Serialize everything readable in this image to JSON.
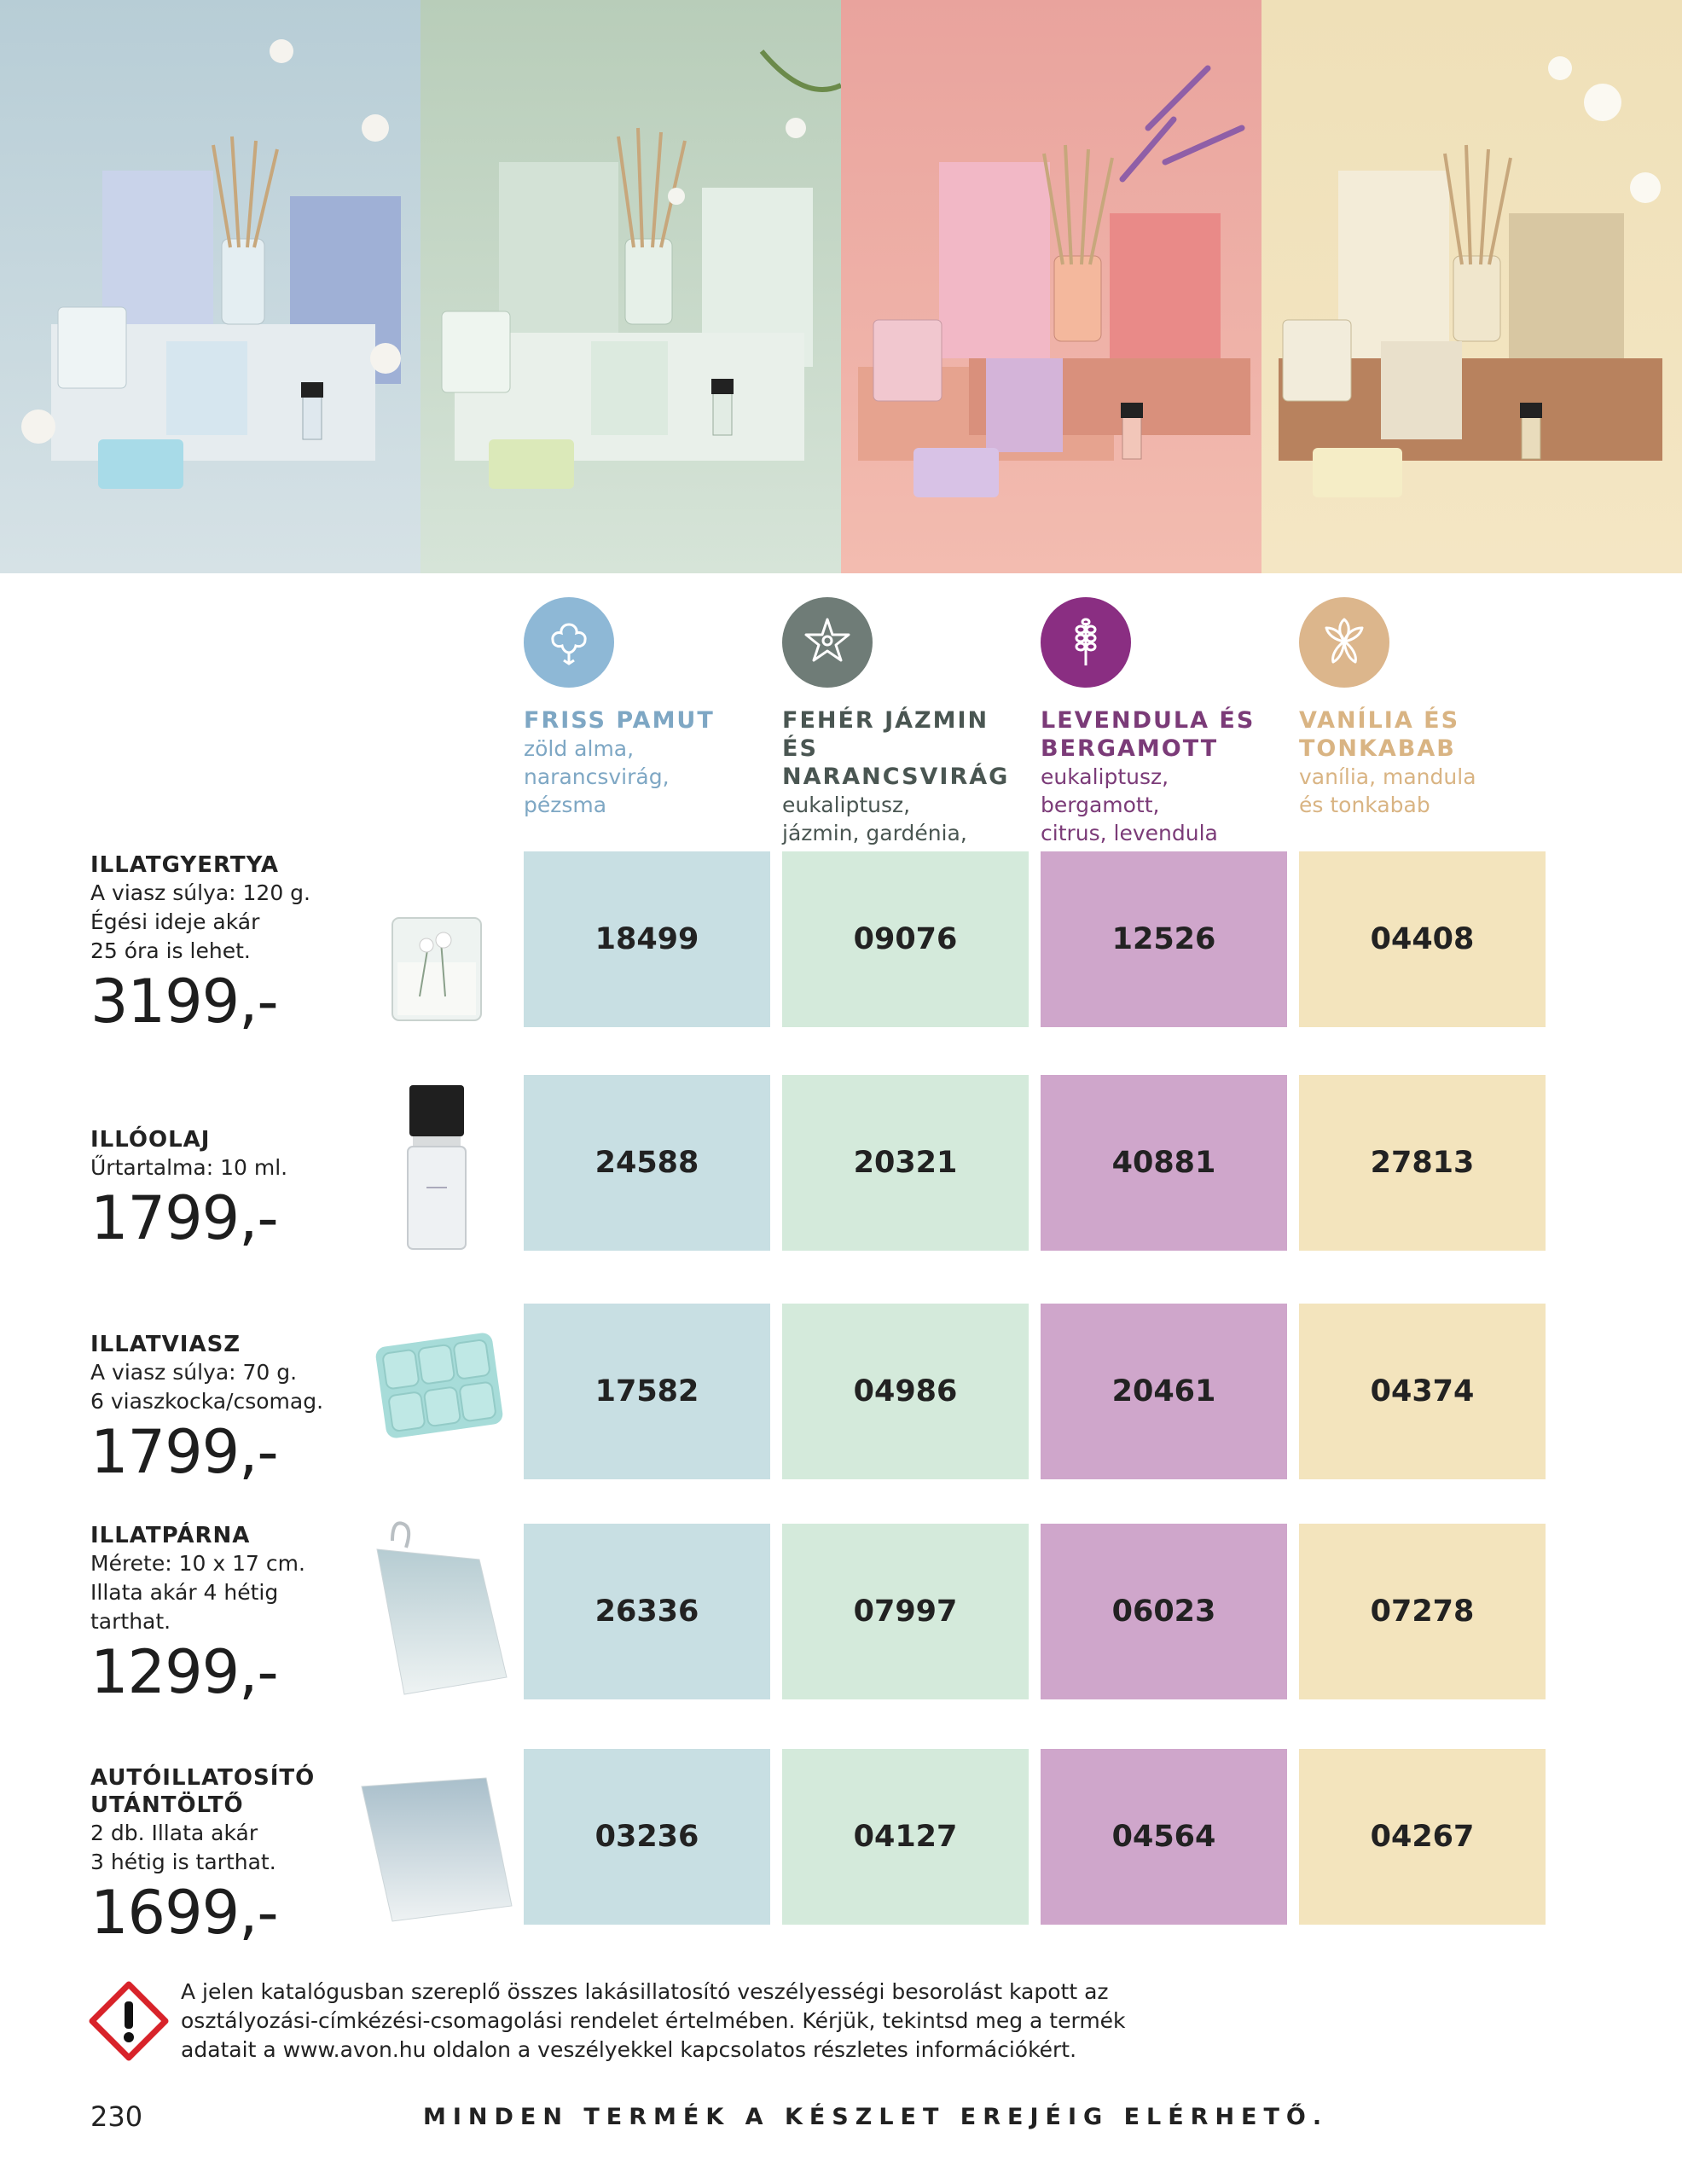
{
  "hero_panels": [
    {
      "name": "friss-pamut",
      "bg": "#bfd3da"
    },
    {
      "name": "feher-jazmin",
      "bg": "#c4d6c6"
    },
    {
      "name": "levendula",
      "bg": "#eba8a1"
    },
    {
      "name": "vanilia",
      "bg": "#eedcb3"
    }
  ],
  "scents": [
    {
      "name": "FRISS PAMUT",
      "notes": "zöld alma,\nnarancsvirág,\npézsma",
      "color": "#7ea7c4",
      "icon_bg": "#8eb8d6",
      "cell_color": "#c8dfe3",
      "icon": "cotton-icon"
    },
    {
      "name": "FEHÉR JÁZMIN ÉS\nNARANCSVIRÁG",
      "notes": "eukaliptusz,\njázmin, gardénia,\nnarancsvirág",
      "color": "#4a5652",
      "icon_bg": "#6f7c77",
      "cell_color": "#d4eadb",
      "icon": "jasmine-flower-icon"
    },
    {
      "name": "LEVENDULA ÉS\nBERGAMOTT",
      "notes": "eukaliptusz, bergamott,\ncitrus, levendula",
      "color": "#7b3b78",
      "icon_bg": "#8a2e82",
      "cell_color": "#cfa6cb",
      "icon": "lavender-icon"
    },
    {
      "name": "VANÍLIA ÉS\nTONKABAB",
      "notes": "vanília, mandula\nés tonkabab",
      "color": "#d9b483",
      "icon_bg": "#dcb68c",
      "cell_color": "#f3e4bd",
      "icon": "vanilla-flower-icon"
    }
  ],
  "products": [
    {
      "name": "ILLATGYERTYA",
      "desc": "A viasz súlya: 120 g.\nÉgési ideje akár\n25 óra is lehet.",
      "price": "3199,-",
      "codes": [
        "18499",
        "09076",
        "12526",
        "04408"
      ],
      "thumb": "candle-image"
    },
    {
      "name": "ILLÓOLAJ",
      "desc": "Űrtartalma: 10 ml.",
      "price": "1799,-",
      "codes": [
        "24588",
        "20321",
        "40881",
        "27813"
      ],
      "thumb": "oil-bottle-image"
    },
    {
      "name": "ILLATVIASZ",
      "desc": "A viasz súlya: 70 g.\n6 viaszkocka/csomag.",
      "price": "1799,-",
      "codes": [
        "17582",
        "04986",
        "20461",
        "04374"
      ],
      "thumb": "wax-melt-image"
    },
    {
      "name": "ILLATPÁRNA",
      "desc": "Mérete: 10 x 17 cm.\nIllata akár 4 hétig\ntarthat.",
      "price": "1299,-",
      "codes": [
        "26336",
        "07997",
        "06023",
        "07278"
      ],
      "thumb": "scent-sachet-image"
    },
    {
      "name": "AUTÓILLATOSÍTÓ\nUTÁNTÖLTŐ",
      "desc": "2 db. Illata akár\n3 hétig is tarthat.",
      "price": "1699,-",
      "codes": [
        "03236",
        "04127",
        "04564",
        "04267"
      ],
      "thumb": "car-refill-image"
    }
  ],
  "footer": {
    "warning": "A jelen katalógusban szereplő összes lakásillatosító veszélyességi besorolást kapott az\nosztályozási-címkézési-csomagolási rendelet értelmében. Kérjük, tekintsd meg a termék\nadatait a www.avon.hu oldalon a veszélyekkel kapcsolatos részletes információkért.",
    "page_number": "230",
    "note": "MINDEN TERMÉK A KÉSZLET EREJÉIG ELÉRHETŐ."
  }
}
